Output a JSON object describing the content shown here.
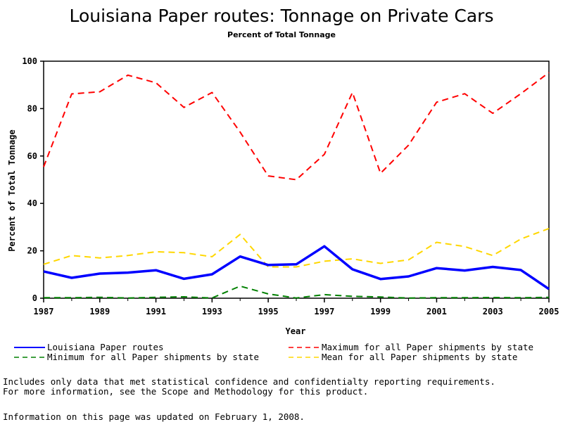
{
  "chart_data": {
    "type": "line",
    "title": "Louisiana Paper routes: Tonnage on Private Cars",
    "subtitle": "Percent of Total Tonnage",
    "xlabel": "Year",
    "ylabel": "Percent of Total Tonnage",
    "xlim": [
      1987,
      2005
    ],
    "ylim": [
      0,
      100
    ],
    "x": [
      1987,
      1988,
      1989,
      1990,
      1991,
      1992,
      1993,
      1994,
      1995,
      1996,
      1997,
      1998,
      1999,
      2000,
      2001,
      2002,
      2003,
      2004,
      2005
    ],
    "x_tick_labels": [
      "1987",
      "1989",
      "1991",
      "1993",
      "1995",
      "1997",
      "1999",
      "2001",
      "2003",
      "2005"
    ],
    "y_tick_labels": [
      "0",
      "20",
      "40",
      "60",
      "80",
      "100"
    ],
    "grid": false,
    "legend_position": "bottom",
    "series": [
      {
        "name": "Louisiana Paper routes",
        "color": "#0000ff",
        "style": "solid",
        "values": [
          11.3,
          8.6,
          10.4,
          10.8,
          11.8,
          8.2,
          10.1,
          17.6,
          14.0,
          14.3,
          21.9,
          12.2,
          8.1,
          9.2,
          12.7,
          11.7,
          13.2,
          11.9,
          3.9
        ]
      },
      {
        "name": "Maximum for all Paper shipments by state",
        "color": "#ff0000",
        "style": "dashed",
        "values": [
          55.4,
          86.2,
          87.1,
          94.1,
          90.9,
          80.5,
          86.8,
          70.1,
          51.6,
          50.0,
          60.7,
          86.8,
          52.7,
          64.6,
          82.7,
          86.3,
          78.0,
          86.3,
          95.2
        ]
      },
      {
        "name": "Minimum for all Paper shipments by state",
        "color": "#008000",
        "style": "dashed",
        "values": [
          0.2,
          0.2,
          0.4,
          0.1,
          0.4,
          0.6,
          0.1,
          5.1,
          1.8,
          0.1,
          1.5,
          0.8,
          0.5,
          0.1,
          0.2,
          0.2,
          0.3,
          0.2,
          0.4
        ]
      },
      {
        "name": "Mean for all Paper shipments by state",
        "color": "#ffd700",
        "style": "dashed",
        "values": [
          14.3,
          18.0,
          17.0,
          18.0,
          19.6,
          19.2,
          17.5,
          26.9,
          13.2,
          13.2,
          15.6,
          16.6,
          14.7,
          16.2,
          23.6,
          21.8,
          18.0,
          25.0,
          29.4
        ]
      }
    ]
  },
  "notes": {
    "line1": "Includes only data that met statistical confidence and confidentialty reporting requirements.",
    "line2": "For more information, see the Scope and Methodology for this product.",
    "updated": "Information on this page was updated on February 1, 2008."
  }
}
